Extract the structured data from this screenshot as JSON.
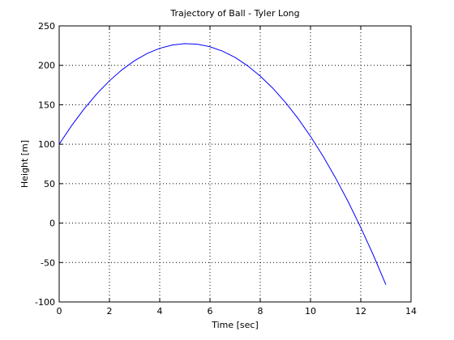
{
  "chart_data": {
    "type": "line",
    "title": "Trajectory of Ball - Tyler Long",
    "xlabel": "Time [sec]",
    "ylabel": "Height [m]",
    "xlim": [
      0,
      14
    ],
    "ylim": [
      -100,
      250
    ],
    "xticks": [
      0,
      2,
      4,
      6,
      8,
      10,
      12,
      14
    ],
    "yticks": [
      -100,
      -50,
      0,
      50,
      100,
      150,
      200,
      250
    ],
    "grid": true,
    "grid_style": "dotted",
    "line_color": "#0000ff",
    "series": [
      {
        "x": [
          0,
          0.5,
          1,
          1.5,
          2,
          2.5,
          3,
          3.5,
          4,
          4.5,
          5,
          5.5,
          6,
          6.5,
          7,
          7.5,
          8,
          8.5,
          9,
          9.5,
          10,
          10.5,
          11,
          11.5,
          12,
          12.5,
          13
        ],
        "values": [
          100,
          123.8,
          145.1,
          164.0,
          180.4,
          194.4,
          205.9,
          215.0,
          221.6,
          225.8,
          227.5,
          226.8,
          223.6,
          218.0,
          210.0,
          199.4,
          186.4,
          171.0,
          153.1,
          132.8,
          110.0,
          84.8,
          57.1,
          27.0,
          -5.6,
          -40.6,
          -78.1
        ]
      }
    ]
  }
}
